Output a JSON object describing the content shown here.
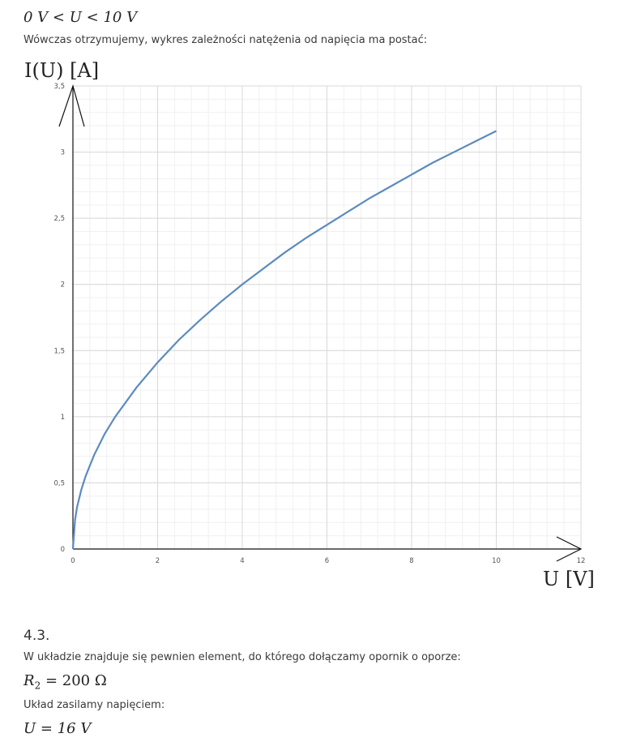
{
  "top_condition": {
    "lhs": "0 V",
    "op1": "<",
    "var": "U",
    "op2": "<",
    "rhs": "10 V"
  },
  "intro_text": "Wówczas otrzymujemy, wykres zależności natężenia od napięcia ma postać:",
  "chart_data": {
    "type": "line",
    "title": "",
    "xlabel": "U [V]",
    "ylabel": "I(U) [A]",
    "xlim": [
      0,
      12
    ],
    "ylim": [
      0,
      3.5
    ],
    "x_ticks": [
      0,
      2,
      4,
      6,
      8,
      10,
      12
    ],
    "x_tick_labels": [
      "0",
      "2",
      "4",
      "6",
      "8",
      "10",
      "12"
    ],
    "y_ticks": [
      0,
      0.5,
      1,
      1.5,
      2,
      2.5,
      3,
      3.5
    ],
    "y_tick_labels": [
      "0",
      "0,5",
      "1",
      "1,5",
      "2",
      "2,5",
      "3",
      "3,5"
    ],
    "grid": true,
    "series": [
      {
        "x": [
          0,
          0.05,
          0.1,
          0.2,
          0.3,
          0.5,
          0.75,
          1,
          1.5,
          2,
          2.5,
          3,
          3.5,
          4,
          4.5,
          5,
          5.5,
          6,
          6.5,
          7,
          7.5,
          8,
          8.5,
          9,
          9.5,
          10
        ],
        "y": [
          0,
          0.22,
          0.32,
          0.45,
          0.55,
          0.71,
          0.87,
          1.0,
          1.22,
          1.41,
          1.58,
          1.73,
          1.87,
          2.0,
          2.12,
          2.24,
          2.35,
          2.45,
          2.55,
          2.65,
          2.74,
          2.83,
          2.92,
          3.0,
          3.08,
          3.16
        ],
        "color": "#5b8bbf"
      }
    ]
  },
  "section_number": "4.3.",
  "section_text_1": "W układzie znajduje się pewnien element, do którego dołączamy opornik o oporze:",
  "resistor": {
    "symbol": "R",
    "sub": "2",
    "eq": "=",
    "value": "200 Ω"
  },
  "section_text_2": "Układ zasilamy napięciem:",
  "voltage": {
    "symbol": "U",
    "eq": "=",
    "value": "16 V"
  }
}
